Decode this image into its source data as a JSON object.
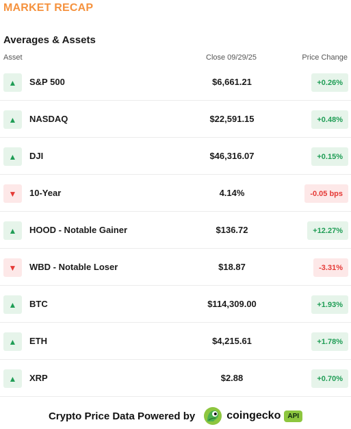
{
  "header": {
    "title": "MARKET RECAP"
  },
  "section": {
    "title": "Averages & Assets",
    "columns": {
      "asset": "Asset",
      "close": "Close 09/29/25",
      "change": "Price Change"
    }
  },
  "icons": {
    "up": "triangle-up-icon",
    "down": "triangle-down-icon",
    "up_glyph": "▲",
    "down_glyph": "▼"
  },
  "colors": {
    "accent": "#f5923e",
    "positive": "#1f9d55",
    "negative": "#e53935",
    "positive_bg": "#e6f4ea",
    "negative_bg": "#fde8e8"
  },
  "rows": [
    {
      "direction": "up",
      "asset": "S&P 500",
      "close": "$6,661.21",
      "change": "+0.26%"
    },
    {
      "direction": "up",
      "asset": "NASDAQ",
      "close": "$22,591.15",
      "change": "+0.48%"
    },
    {
      "direction": "up",
      "asset": "DJI",
      "close": "$46,316.07",
      "change": "+0.15%"
    },
    {
      "direction": "down",
      "asset": "10-Year",
      "close": "4.14%",
      "change": "-0.05 bps"
    },
    {
      "direction": "up",
      "asset": "HOOD - Notable Gainer",
      "close": "$136.72",
      "change": "+12.27%"
    },
    {
      "direction": "down",
      "asset": "WBD - Notable Loser",
      "close": "$18.87",
      "change": "-3.31%"
    },
    {
      "direction": "up",
      "asset": "BTC",
      "close": "$114,309.00",
      "change": "+1.93%"
    },
    {
      "direction": "up",
      "asset": "ETH",
      "close": "$4,215.61",
      "change": "+1.78%"
    },
    {
      "direction": "up",
      "asset": "XRP",
      "close": "$2.88",
      "change": "+0.70%"
    }
  ],
  "footer": {
    "powered_by": "Crypto Price Data Powered by",
    "brand": "coingecko",
    "badge": "API",
    "logo_icon": "coingecko-gecko-icon"
  }
}
